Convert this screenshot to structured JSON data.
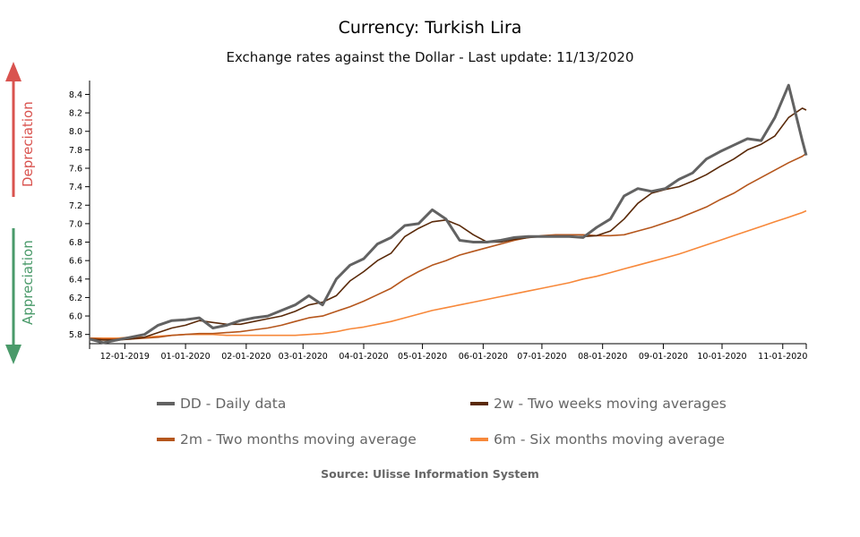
{
  "chart_data": {
    "type": "line",
    "title": "Currency: Turkish Lira",
    "subtitle": "Exchange rates against the Dollar - Last update: 11/13/2020",
    "xlabel": "",
    "ylabel": "",
    "xlim": [
      "2019-11-13",
      "2020-11-13"
    ],
    "ylim": [
      5.7,
      8.55
    ],
    "y_ticks": [
      "5.8",
      "6.0",
      "6.2",
      "6.4",
      "6.6",
      "6.8",
      "7.0",
      "7.2",
      "7.4",
      "7.6",
      "7.8",
      "8.0",
      "8.2",
      "8.4"
    ],
    "x_ticks": [
      {
        "date": "2019-12-01",
        "label": "12-01-2019"
      },
      {
        "date": "2020-01-01",
        "label": "01-01-2020"
      },
      {
        "date": "2020-02-01",
        "label": "02-01-2020"
      },
      {
        "date": "2020-03-01",
        "label": "03-01-2020"
      },
      {
        "date": "2020-04-01",
        "label": "04-01-2020"
      },
      {
        "date": "2020-05-01",
        "label": "05-01-2020"
      },
      {
        "date": "2020-06-01",
        "label": "06-01-2020"
      },
      {
        "date": "2020-07-01",
        "label": "07-01-2020"
      },
      {
        "date": "2020-08-01",
        "label": "08-01-2020"
      },
      {
        "date": "2020-09-01",
        "label": "09-01-2020"
      },
      {
        "date": "2020-10-01",
        "label": "10-01-2020"
      },
      {
        "date": "2020-11-01",
        "label": "11-01-2020"
      }
    ],
    "grid": false,
    "legend_placement": "bottom",
    "x": [
      "2019-11-13",
      "2019-11-20",
      "2019-11-27",
      "2019-12-04",
      "2019-12-11",
      "2019-12-18",
      "2019-12-25",
      "2020-01-01",
      "2020-01-08",
      "2020-01-15",
      "2020-01-22",
      "2020-01-29",
      "2020-02-05",
      "2020-02-12",
      "2020-02-19",
      "2020-02-26",
      "2020-03-04",
      "2020-03-11",
      "2020-03-18",
      "2020-03-25",
      "2020-04-01",
      "2020-04-08",
      "2020-04-15",
      "2020-04-22",
      "2020-04-29",
      "2020-05-06",
      "2020-05-13",
      "2020-05-20",
      "2020-05-27",
      "2020-06-03",
      "2020-06-10",
      "2020-06-17",
      "2020-06-24",
      "2020-07-01",
      "2020-07-08",
      "2020-07-15",
      "2020-07-22",
      "2020-07-29",
      "2020-08-05",
      "2020-08-12",
      "2020-08-19",
      "2020-08-26",
      "2020-09-02",
      "2020-09-09",
      "2020-09-16",
      "2020-09-23",
      "2020-09-30",
      "2020-10-07",
      "2020-10-14",
      "2020-10-21",
      "2020-10-28",
      "2020-11-04",
      "2020-11-11",
      "2020-11-13"
    ],
    "series": [
      {
        "name": "DD - Daily data",
        "color": "#626262",
        "values": [
          5.75,
          5.71,
          5.74,
          5.77,
          5.8,
          5.9,
          5.95,
          5.96,
          5.98,
          5.87,
          5.9,
          5.95,
          5.98,
          6.0,
          6.06,
          6.12,
          6.22,
          6.12,
          6.4,
          6.55,
          6.62,
          6.78,
          6.85,
          6.98,
          7.0,
          7.15,
          7.05,
          6.82,
          6.8,
          6.8,
          6.82,
          6.85,
          6.86,
          6.86,
          6.86,
          6.86,
          6.85,
          6.96,
          7.05,
          7.3,
          7.38,
          7.35,
          7.38,
          7.48,
          7.55,
          7.7,
          7.78,
          7.85,
          7.92,
          7.9,
          8.15,
          8.5,
          7.9,
          7.74
        ]
      },
      {
        "name": "2w - Two weeks moving averages",
        "color": "#5a2a0a",
        "values": [
          5.75,
          5.74,
          5.74,
          5.75,
          5.77,
          5.82,
          5.87,
          5.9,
          5.95,
          5.93,
          5.91,
          5.91,
          5.94,
          5.97,
          6.0,
          6.05,
          6.12,
          6.15,
          6.22,
          6.38,
          6.48,
          6.6,
          6.68,
          6.86,
          6.95,
          7.02,
          7.04,
          6.98,
          6.88,
          6.8,
          6.8,
          6.83,
          6.85,
          6.86,
          6.86,
          6.86,
          6.86,
          6.87,
          6.92,
          7.05,
          7.22,
          7.33,
          7.37,
          7.4,
          7.46,
          7.53,
          7.62,
          7.7,
          7.8,
          7.86,
          7.95,
          8.15,
          8.25,
          8.23
        ]
      },
      {
        "name": "2m - Two months moving average",
        "color": "#b5561c",
        "values": [
          5.76,
          5.75,
          5.75,
          5.75,
          5.76,
          5.77,
          5.79,
          5.8,
          5.81,
          5.81,
          5.82,
          5.83,
          5.85,
          5.87,
          5.9,
          5.94,
          5.98,
          6.0,
          6.05,
          6.1,
          6.16,
          6.23,
          6.3,
          6.4,
          6.48,
          6.55,
          6.6,
          6.66,
          6.7,
          6.74,
          6.78,
          6.82,
          6.85,
          6.87,
          6.88,
          6.88,
          6.88,
          6.87,
          6.87,
          6.88,
          6.92,
          6.96,
          7.01,
          7.06,
          7.12,
          7.18,
          7.26,
          7.33,
          7.42,
          7.5,
          7.58,
          7.66,
          7.73,
          7.76
        ]
      },
      {
        "name": "6m - Six months moving average",
        "color": "#f7883a",
        "values": [
          5.76,
          5.76,
          5.76,
          5.77,
          5.77,
          5.78,
          5.79,
          5.8,
          5.8,
          5.8,
          5.79,
          5.79,
          5.79,
          5.79,
          5.79,
          5.79,
          5.8,
          5.81,
          5.83,
          5.86,
          5.88,
          5.91,
          5.94,
          5.98,
          6.02,
          6.06,
          6.09,
          6.12,
          6.15,
          6.18,
          6.21,
          6.24,
          6.27,
          6.3,
          6.33,
          6.36,
          6.4,
          6.43,
          6.47,
          6.51,
          6.55,
          6.59,
          6.63,
          6.67,
          6.72,
          6.77,
          6.82,
          6.87,
          6.92,
          6.97,
          7.02,
          7.07,
          7.12,
          7.14
        ]
      }
    ]
  },
  "side": {
    "depreciation": "Depreciation",
    "appreciation": "Appreciation",
    "depreciation_color": "#d9534f",
    "appreciation_color": "#4a9a6a"
  },
  "source": "Source: Ulisse Information System"
}
